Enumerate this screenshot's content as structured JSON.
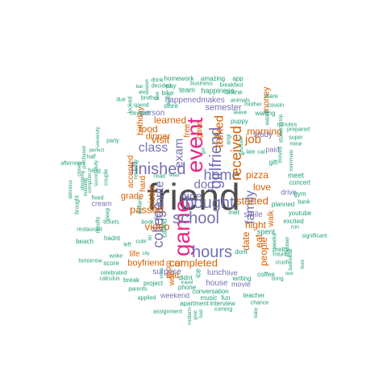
{
  "palette": {
    "gray": "#4d4d4d",
    "purple": "#7570b3",
    "orange": "#d95f02",
    "teal": "#1b9e77",
    "pink": "#e7298a"
  },
  "words": [
    {
      "id": "friend",
      "text": "friend",
      "color": "gray"
    },
    {
      "id": "event",
      "text": "event",
      "color": "pink"
    },
    {
      "id": "game",
      "text": "game",
      "color": "pink"
    },
    {
      "id": "bought",
      "text": "bought",
      "color": "purple"
    },
    {
      "id": "finished",
      "text": "finished",
      "color": "purple"
    },
    {
      "id": "school",
      "text": "school",
      "color": "purple"
    },
    {
      "id": "hours",
      "text": "hours",
      "color": "purple"
    },
    {
      "id": "girlfriend",
      "text": "girlfriend",
      "color": "purple"
    },
    {
      "id": "home",
      "text": "home",
      "color": "purple"
    },
    {
      "id": "class",
      "text": "class",
      "color": "purple"
    },
    {
      "id": "college",
      "text": "college",
      "color": "purple"
    },
    {
      "id": "exam",
      "text": "exam",
      "color": "purple"
    },
    {
      "id": "nice",
      "text": "nice",
      "color": "purple"
    },
    {
      "id": "dog",
      "text": "dog",
      "color": "purple"
    },
    {
      "id": "family",
      "text": "family",
      "color": "purple"
    },
    {
      "id": "favorite",
      "text": "favorite",
      "color": "purple"
    },
    {
      "id": "received",
      "text": "received",
      "color": "orange"
    },
    {
      "id": "talked",
      "text": "talked",
      "color": "orange"
    },
    {
      "id": "job",
      "text": "job",
      "color": "orange"
    },
    {
      "id": "visit",
      "text": "visit",
      "color": "orange"
    },
    {
      "id": "completed",
      "text": "completed",
      "color": "orange"
    },
    {
      "id": "video",
      "text": "video",
      "color": "orange"
    },
    {
      "id": "passed",
      "text": "passed",
      "color": "orange"
    },
    {
      "id": "car",
      "text": "car",
      "color": "orange"
    },
    {
      "id": "boyfriend",
      "text": "boyfriend",
      "color": "orange"
    },
    {
      "id": "started",
      "text": "started",
      "color": "orange"
    },
    {
      "id": "morning",
      "text": "morning",
      "color": "orange"
    },
    {
      "id": "love",
      "text": "love",
      "color": "orange"
    },
    {
      "id": "night",
      "text": "night",
      "color": "orange"
    },
    {
      "id": "people",
      "text": "people",
      "color": "orange"
    },
    {
      "id": "pizza",
      "text": "pizza",
      "color": "orange"
    },
    {
      "id": "dinner",
      "text": "dinner",
      "color": "orange"
    },
    {
      "id": "learned",
      "text": "learned",
      "color": "orange"
    },
    {
      "id": "food",
      "text": "food",
      "color": "orange"
    },
    {
      "id": "sister",
      "text": "sister",
      "color": "orange"
    },
    {
      "id": "grade",
      "text": "grade",
      "color": "orange"
    },
    {
      "id": "money",
      "text": "money",
      "color": "orange"
    },
    {
      "id": "date",
      "text": "date",
      "color": "orange"
    },
    {
      "id": "eat",
      "text": "eat",
      "color": "orange"
    },
    {
      "id": "birthday",
      "text": "birthday",
      "color": "orange"
    },
    {
      "id": "hard",
      "text": "hard",
      "color": "orange"
    },
    {
      "id": "mom",
      "text": "mom",
      "color": "orange"
    },
    {
      "id": "won",
      "text": "won",
      "color": "orange"
    },
    {
      "id": "told",
      "text": "told",
      "color": "orange"
    },
    {
      "id": "free",
      "text": "free",
      "color": "orange"
    },
    {
      "id": "gave",
      "text": "gave",
      "color": "orange"
    },
    {
      "id": "accepted",
      "text": "accepted",
      "color": "orange"
    },
    {
      "id": "walk",
      "text": "walk",
      "color": "orange"
    },
    {
      "id": "life",
      "text": "life",
      "color": "orange"
    },
    {
      "id": "semester",
      "text": "semester",
      "color": "purple"
    },
    {
      "id": "lunch",
      "text": "lunch",
      "color": "purple"
    },
    {
      "id": "house",
      "text": "house",
      "color": "purple"
    },
    {
      "id": "surprise",
      "text": "surprise",
      "color": "purple"
    },
    {
      "id": "study",
      "text": "study",
      "color": "purple"
    },
    {
      "id": "smile",
      "text": "smile",
      "color": "purple"
    },
    {
      "id": "person",
      "text": "person",
      "color": "purple"
    },
    {
      "id": "happened",
      "text": "happened",
      "color": "purple"
    },
    {
      "id": "makes",
      "text": "makes",
      "color": "purple"
    },
    {
      "id": "movie",
      "text": "movie",
      "color": "purple"
    },
    {
      "id": "live",
      "text": "live",
      "color": "purple"
    },
    {
      "id": "drive",
      "text": "drive",
      "color": "purple"
    },
    {
      "id": "paid",
      "text": "paid",
      "color": "purple"
    },
    {
      "id": "cream",
      "text": "cream",
      "color": "purple"
    },
    {
      "id": "weekend",
      "text": "weekend",
      "color": "purple"
    },
    {
      "id": "happiness",
      "text": "happiness",
      "color": "teal"
    },
    {
      "id": "team",
      "text": "team",
      "color": "teal"
    },
    {
      "id": "pay",
      "text": "pay",
      "color": "teal"
    },
    {
      "id": "bike",
      "text": "bike",
      "color": "teal"
    },
    {
      "id": "homework",
      "text": "homework",
      "color": "teal"
    },
    {
      "id": "amazing",
      "text": "amazing",
      "color": "teal"
    },
    {
      "id": "app",
      "text": "app",
      "color": "teal"
    },
    {
      "id": "business",
      "text": "business",
      "color": "teal"
    },
    {
      "id": "breakfast",
      "text": "breakfast",
      "color": "teal"
    },
    {
      "id": "online",
      "text": "online",
      "color": "teal"
    },
    {
      "id": "animals",
      "text": "animals",
      "color": "teal"
    },
    {
      "id": "share",
      "text": "share",
      "color": "teal"
    },
    {
      "id": "drink",
      "text": "drink",
      "color": "teal"
    },
    {
      "id": "decided",
      "text": "decided",
      "color": "teal"
    },
    {
      "id": "store",
      "text": "store",
      "color": "teal"
    },
    {
      "id": "brother",
      "text": "brother",
      "color": "teal"
    },
    {
      "id": "spend",
      "text": "spend",
      "color": "teal"
    },
    {
      "id": "cleaned",
      "text": "cleaned",
      "color": "teal"
    },
    {
      "id": "mother",
      "text": "mother",
      "color": "teal"
    },
    {
      "id": "waiting",
      "text": "waiting",
      "color": "teal"
    },
    {
      "id": "cousin",
      "text": "cousin",
      "color": "teal"
    },
    {
      "id": "puppy",
      "text": "puppy",
      "color": "teal"
    },
    {
      "id": "minutes",
      "text": "minutes",
      "color": "teal"
    },
    {
      "id": "prepared",
      "text": "prepared",
      "color": "teal"
    },
    {
      "id": "super",
      "text": "super",
      "color": "teal"
    },
    {
      "id": "mine",
      "text": "mine",
      "color": "teal"
    },
    {
      "id": "gift",
      "text": "gift",
      "color": "teal"
    },
    {
      "id": "late",
      "text": "late",
      "color": "teal"
    },
    {
      "id": "cat",
      "text": "cat",
      "color": "teal"
    },
    {
      "id": "meet",
      "text": "meet",
      "color": "teal"
    },
    {
      "id": "concert",
      "text": "concert",
      "color": "teal"
    },
    {
      "id": "gym",
      "text": "gym",
      "color": "teal"
    },
    {
      "id": "bank",
      "text": "bank",
      "color": "teal"
    },
    {
      "id": "planned",
      "text": "planned",
      "color": "teal"
    },
    {
      "id": "excited",
      "text": "excited",
      "color": "teal"
    },
    {
      "id": "run",
      "text": "run",
      "color": "teal"
    },
    {
      "id": "youtube",
      "text": "youtube",
      "color": "teal"
    },
    {
      "id": "spent",
      "text": "spent",
      "color": "teal"
    },
    {
      "id": "pretty",
      "text": "pretty",
      "color": "teal"
    },
    {
      "id": "significant",
      "text": "significant",
      "color": "teal"
    },
    {
      "id": "coffee",
      "text": "coffee",
      "color": "teal"
    },
    {
      "id": "song",
      "text": "song",
      "color": "teal"
    },
    {
      "id": "teacher",
      "text": "teacher",
      "color": "teal"
    },
    {
      "id": "chance",
      "text": "chance",
      "color": "teal"
    },
    {
      "id": "coming",
      "text": "coming",
      "color": "teal"
    },
    {
      "id": "writing",
      "text": "writing",
      "color": "teal"
    },
    {
      "id": "dont",
      "text": "dont",
      "color": "teal"
    },
    {
      "id": "met",
      "text": "met",
      "color": "teal"
    },
    {
      "id": "conversation",
      "text": "conversation",
      "color": "teal"
    },
    {
      "id": "phone",
      "text": "phone",
      "color": "teal"
    },
    {
      "id": "didnt",
      "text": "didnt",
      "color": "teal"
    },
    {
      "id": "music",
      "text": "music",
      "color": "teal"
    },
    {
      "id": "fun",
      "text": "fun",
      "color": "teal"
    },
    {
      "id": "interview",
      "text": "interview",
      "color": "teal"
    },
    {
      "id": "apartment",
      "text": "apartment",
      "color": "teal"
    },
    {
      "id": "assignment",
      "text": "assignment",
      "color": "teal"
    },
    {
      "id": "applied",
      "text": "applied",
      "color": "teal"
    },
    {
      "id": "parents",
      "text": "parents",
      "color": "teal"
    },
    {
      "id": "break",
      "text": "break",
      "color": "teal"
    },
    {
      "id": "project",
      "text": "project",
      "color": "teal"
    },
    {
      "id": "celebrated",
      "text": "celebrated",
      "color": "teal"
    },
    {
      "id": "calculus",
      "text": "calculus",
      "color": "teal"
    },
    {
      "id": "score",
      "text": "score",
      "color": "teal"
    },
    {
      "id": "woke",
      "text": "woke",
      "color": "teal"
    },
    {
      "id": "tomorrow",
      "text": "tomorrow",
      "color": "teal"
    },
    {
      "id": "beach",
      "text": "beach",
      "color": "teal"
    },
    {
      "id": "restaurant",
      "text": "restaurant",
      "color": "teal"
    },
    {
      "id": "hadnt",
      "text": "hadnt",
      "color": "teal"
    },
    {
      "id": "tickets",
      "text": "tickets",
      "color": "teal"
    },
    {
      "id": "results",
      "text": "results",
      "color": "teal"
    },
    {
      "id": "sleep",
      "text": "sleep",
      "color": "teal"
    },
    {
      "id": "couple",
      "text": "couple",
      "color": "teal"
    },
    {
      "id": "hang",
      "text": "hang",
      "color": "teal"
    },
    {
      "id": "party",
      "text": "party",
      "color": "teal"
    },
    {
      "id": "due",
      "text": "due",
      "color": "teal"
    },
    {
      "id": "looked",
      "text": "looked",
      "color": "teal"
    },
    {
      "id": "afternoon",
      "text": "afternoon",
      "color": "teal"
    },
    {
      "id": "delicious",
      "text": "delicious",
      "color": "teal"
    },
    {
      "id": "brought",
      "text": "brought",
      "color": "teal"
    },
    {
      "id": "purchased",
      "text": "purchased",
      "color": "teal"
    },
    {
      "id": "university",
      "text": "university",
      "color": "teal"
    },
    {
      "id": "successfully",
      "text": "successfully",
      "color": "teal"
    },
    {
      "id": "listening",
      "text": "listening",
      "color": "teal"
    },
    {
      "id": "computer",
      "text": "computer",
      "color": "teal"
    },
    {
      "id": "shopping",
      "text": "shopping",
      "color": "teal"
    },
    {
      "id": "closed",
      "text": "closed",
      "color": "teal"
    },
    {
      "id": "fixed",
      "text": "fixed",
      "color": "teal"
    },
    {
      "id": "half",
      "text": "half",
      "color": "teal"
    },
    {
      "id": "perfect",
      "text": "perfect",
      "color": "teal"
    },
    {
      "id": "recently",
      "text": "recently",
      "color": "teal"
    },
    {
      "id": "read",
      "text": "read",
      "color": "teal"
    },
    {
      "id": "relax",
      "text": "relax",
      "color": "teal"
    },
    {
      "id": "dollars",
      "text": "dollars",
      "color": "teal"
    },
    {
      "id": "book",
      "text": "book",
      "color": "teal"
    },
    {
      "id": "left",
      "text": "left",
      "color": "teal"
    },
    {
      "id": "cute",
      "text": "cute",
      "color": "teal"
    },
    {
      "id": "hit",
      "text": "hit",
      "color": "teal"
    },
    {
      "id": "city",
      "text": "city",
      "color": "teal"
    },
    {
      "id": "extra",
      "text": "extra",
      "color": "teal"
    },
    {
      "id": "travel",
      "text": "travel",
      "color": "teal"
    },
    {
      "id": "called",
      "text": "called",
      "color": "teal"
    },
    {
      "id": "ice",
      "text": "ice",
      "color": "teal"
    },
    {
      "id": "girl",
      "text": "girl",
      "color": "teal"
    },
    {
      "id": "angi",
      "text": "angi",
      "color": "teal"
    },
    {
      "id": "leave",
      "text": "leave",
      "color": "teal"
    },
    {
      "id": "wasnt",
      "text": "wasnt",
      "color": "teal"
    },
    {
      "id": "trip",
      "text": "trip",
      "color": "teal"
    },
    {
      "id": "students",
      "text": "students",
      "color": "teal"
    },
    {
      "id": "moved",
      "text": "moved",
      "color": "teal"
    },
    {
      "id": "roommate",
      "text": "roommate",
      "color": "teal"
    },
    {
      "id": "mturk",
      "text": "mturk",
      "color": "teal"
    },
    {
      "id": "weeks",
      "text": "weeks",
      "color": "teal"
    },
    {
      "id": "summer",
      "text": "summer",
      "color": "teal"
    },
    {
      "id": "crush",
      "text": "crush",
      "color": "teal"
    },
    {
      "id": "basketball",
      "text": "basketball",
      "color": "teal"
    },
    {
      "id": "text",
      "text": "text",
      "color": "teal"
    },
    {
      "id": "tired",
      "text": "tired",
      "color": "teal"
    },
    {
      "id": "baby",
      "text": "baby",
      "color": "teal"
    },
    {
      "id": "bad",
      "text": "bad",
      "color": "teal"
    },
    {
      "id": "goal",
      "text": "goal",
      "color": "teal"
    },
    {
      "id": "midterm",
      "text": "midterm",
      "color": "teal"
    },
    {
      "id": "ate",
      "text": "ate",
      "color": "teal"
    },
    {
      "id": "bar",
      "text": "bar",
      "color": "teal"
    },
    {
      "id": "season",
      "text": "season",
      "color": "teal"
    },
    {
      "id": "task",
      "text": "task",
      "color": "teal"
    },
    {
      "id": "deals",
      "text": "deals",
      "color": "teal"
    },
    {
      "id": "outside",
      "text": "outside",
      "color": "teal"
    },
    {
      "id": "car2",
      "text": "car",
      "color": "teal"
    }
  ]
}
